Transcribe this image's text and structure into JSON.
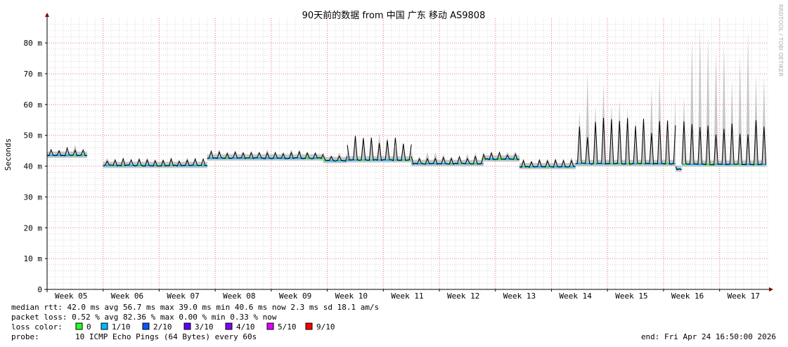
{
  "chart_data": {
    "type": "line",
    "title": "90天前的数据 from 中国 广东 移动 AS9808",
    "ylabel": "Seconds",
    "watermark": "RRDTOOL / TOBI OETIKER",
    "ylim": [
      0,
      88
    ],
    "y_ticks": [
      {
        "value": 0,
        "label": "0"
      },
      {
        "value": 10,
        "label": "10 m"
      },
      {
        "value": 20,
        "label": "20 m"
      },
      {
        "value": 30,
        "label": "30 m"
      },
      {
        "value": 40,
        "label": "40 m"
      },
      {
        "value": 50,
        "label": "50 m"
      },
      {
        "value": 60,
        "label": "60 m"
      },
      {
        "value": 70,
        "label": "70 m"
      },
      {
        "value": 80,
        "label": "80 m"
      }
    ],
    "x_range_days": [
      0,
      90
    ],
    "x_ticks": [
      {
        "day": 3,
        "label": "Week 05"
      },
      {
        "day": 10,
        "label": "Week 06"
      },
      {
        "day": 17,
        "label": "Week 07"
      },
      {
        "day": 24,
        "label": "Week 08"
      },
      {
        "day": 31,
        "label": "Week 09"
      },
      {
        "day": 38,
        "label": "Week 10"
      },
      {
        "day": 45,
        "label": "Week 11"
      },
      {
        "day": 52,
        "label": "Week 12"
      },
      {
        "day": 59,
        "label": "Week 13"
      },
      {
        "day": 66,
        "label": "Week 14"
      },
      {
        "day": 73,
        "label": "Week 15"
      },
      {
        "day": 80,
        "label": "Week 16"
      },
      {
        "day": 87,
        "label": "Week 17"
      }
    ],
    "segments": [
      {
        "start": 0,
        "end": 5,
        "baseline": 43.5,
        "spike": 46,
        "smoke_max": 47
      },
      {
        "start": 7,
        "end": 20,
        "baseline": 40.2,
        "spike": 42.5,
        "smoke_max": 43
      },
      {
        "start": 20,
        "end": 34.5,
        "baseline": 42.6,
        "spike": 45,
        "smoke_max": 45.5
      },
      {
        "start": 34.5,
        "end": 37.5,
        "baseline": 41.8,
        "spike": 44,
        "smoke_max": 44.5
      },
      {
        "start": 37.5,
        "end": 45.5,
        "baseline": 42,
        "spike": 50,
        "smoke_max": 51
      },
      {
        "start": 45.5,
        "end": 54.5,
        "baseline": 40.8,
        "spike": 43.5,
        "smoke_max": 45
      },
      {
        "start": 54.5,
        "end": 59,
        "baseline": 42.3,
        "spike": 44.5,
        "smoke_max": 45.5
      },
      {
        "start": 59,
        "end": 66,
        "baseline": 39.8,
        "spike": 42,
        "smoke_max": 43
      },
      {
        "start": 66,
        "end": 78.5,
        "baseline": 40.8,
        "spike": 56,
        "smoke_max": 72
      },
      {
        "start": 78.5,
        "end": 79.3,
        "baseline": 39,
        "spike": 40,
        "smoke_max": 41
      },
      {
        "start": 79.3,
        "end": 90,
        "baseline": 40.6,
        "spike": 55,
        "smoke_max": 88
      }
    ],
    "median_line_color": "#000000",
    "smoke_color": "#b4b4b4",
    "grid_major_color": "#e08080",
    "grid_minor_color": "#d8d8d8",
    "loss_colors": [
      {
        "label": "0",
        "color": "#26ff26"
      },
      {
        "label": "1/10",
        "color": "#00b8ff"
      },
      {
        "label": "2/10",
        "color": "#0059ff"
      },
      {
        "label": "3/10",
        "color": "#5e00ff"
      },
      {
        "label": "4/10",
        "color": "#7e00ff"
      },
      {
        "label": "5/10",
        "color": "#dd00ff"
      },
      {
        "label": "9/10",
        "color": "#ff0000"
      }
    ]
  },
  "stats": {
    "median_rtt": "median rtt:  42.0 ms avg  56.7 ms max  39.0 ms min  40.6 ms now  2.3 ms sd  18.1   am/s",
    "packet_loss": "packet loss: 0.52 % avg  82.36 % max  0.00 % min  0.33 % now",
    "loss_color_label": "loss color:",
    "probe_label": "probe:",
    "probe_value": "10 ICMP Echo Pings (64 Bytes) every 60s",
    "end": "end: Fri Apr 24 16:50:00 2026"
  }
}
